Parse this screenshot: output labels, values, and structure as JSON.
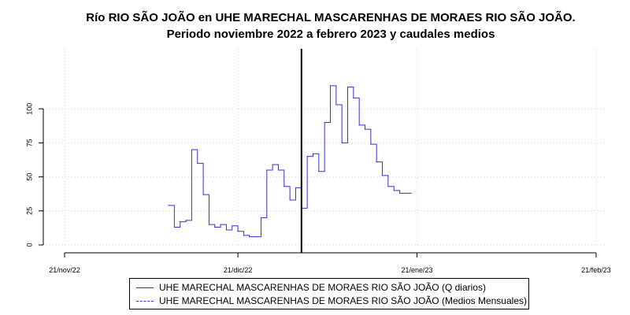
{
  "chart_data": {
    "type": "line",
    "title": "Río RIO SÃO JOÃO en UHE MARECHAL MASCARENHAS DE MORAES RIO SÃO JOÃO.",
    "subtitle": "Periodo noviembre 2022 a febrero 2023 y caudales medios",
    "xlabel": "",
    "ylabel": "",
    "x_ticks": [
      {
        "day": 0,
        "label": "21/nov/22"
      },
      {
        "day": 30,
        "label": "21/dic/22"
      },
      {
        "day": 61,
        "label": "21/ene/23"
      },
      {
        "day": 92,
        "label": "21/feb/23"
      }
    ],
    "xlim": [
      0,
      92
    ],
    "ylim": [
      0,
      125
    ],
    "y_ticks": [
      0,
      25,
      50,
      75,
      100
    ],
    "grid": true,
    "reference_line_day": 41,
    "legend_position": "bottom",
    "series": [
      {
        "name": "UHE MARECHAL MASCARENHAS DE MORAES RIO SÃO JOÃO (Q diarios)",
        "style": "solid",
        "color": "#3333cc",
        "x": [
          18,
          19,
          20,
          21,
          22,
          23,
          24,
          25,
          26,
          27,
          28,
          29,
          30,
          31,
          32,
          33,
          34,
          35,
          36,
          37,
          38,
          39,
          40,
          41,
          42,
          43,
          44,
          45,
          46,
          47,
          48,
          49,
          50,
          51,
          52,
          53,
          54,
          55,
          56,
          57,
          58,
          59,
          60
        ],
        "y": [
          29,
          13,
          17,
          18,
          70,
          60,
          37,
          15,
          13,
          15,
          11,
          14,
          10,
          7,
          6,
          6,
          20,
          55,
          59,
          55,
          43,
          33,
          42,
          27,
          65,
          67,
          54,
          90,
          117,
          103,
          75,
          116,
          108,
          88,
          85,
          74,
          61,
          51,
          43,
          40,
          38,
          38,
          38
        ]
      },
      {
        "name": "UHE MARECHAL MASCARENHAS DE MORAES RIO SÃO JOÃO (Medios Mensuales)",
        "style": "dashed",
        "color": "#3333cc",
        "x": [],
        "y": []
      }
    ]
  }
}
